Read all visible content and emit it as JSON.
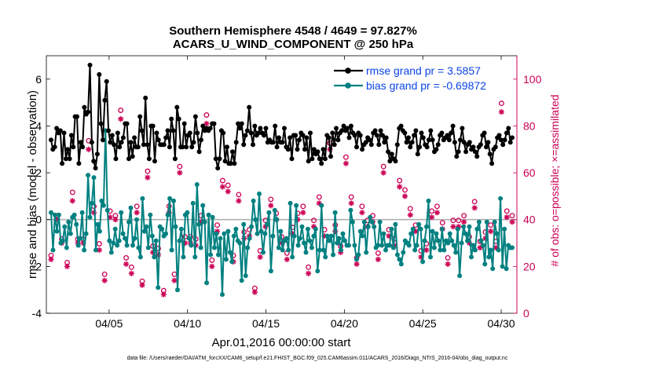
{
  "chart_data": {
    "type": "line",
    "title_line1": "Southern Hemisphere 4548 / 4649 = 97.827%",
    "title_line2": "ACARS_U_WIND_COMPONENT @ 250 hPa",
    "xlabel": "Apr.01,2016 00:00:00 start",
    "ylabel_left": "rmse and bias (model - observation)",
    "ylabel_right": "# of obs: o=possible; ×=assimilated",
    "footer": "data file: /Users/raeder/DAI/ATM_forcXX/CAM6_setup/f.e21.FHIST_BGC.f09_025.CAM6assim.011/ACARS_2016/Diags_NTrS_2016-04/obs_diag_output.nc",
    "x_ticks": [
      {
        "day": 5,
        "label": "04/05"
      },
      {
        "day": 10,
        "label": "04/10"
      },
      {
        "day": 15,
        "label": "04/15"
      },
      {
        "day": 20,
        "label": "04/20"
      },
      {
        "day": 25,
        "label": "04/25"
      },
      {
        "day": 30,
        "label": "04/30"
      }
    ],
    "xlim": [
      1.0,
      31.0
    ],
    "ylim_left": [
      -4,
      7
    ],
    "yticks_left": [
      "-4",
      "-2",
      "0",
      "2",
      "4",
      "6"
    ],
    "ylim_right": [
      0,
      110
    ],
    "yticks_right": [
      "0",
      "20",
      "40",
      "60",
      "80",
      "100"
    ],
    "colors": {
      "rmse": "#000000",
      "bias": "#008080",
      "obs": "#cc0055",
      "zero": "#b0b0b0",
      "legend_text": "#0a44e6"
    },
    "series": [
      {
        "name": "rmse",
        "legend": "rmse grand pr = 3.5857",
        "values": [
          3.4,
          3.0,
          3.1,
          3.9,
          3.7,
          3.8,
          2.4,
          3.7,
          2.6,
          3.0,
          2.6,
          3.6,
          3.1,
          4.4,
          4.4,
          2.4,
          3.3,
          3.1,
          4.8,
          4.5,
          4.6,
          6.6,
          3.3,
          2.5,
          2.2,
          2.8,
          6.2,
          4.1,
          3.4,
          5.1,
          5.9,
          3.8,
          3.3,
          3.6,
          3.2,
          2.6,
          3.7,
          3.1,
          3.3,
          3.5,
          4.1,
          4.1,
          2.6,
          3.3,
          2.7,
          3.5,
          3.1,
          3.1,
          4.4,
          3.8,
          3.2,
          5.2,
          3.2,
          2.6,
          4.0,
          4.0,
          2.5,
          3.7,
          3.4,
          3.2,
          3.2,
          3.2,
          3.5,
          3.8,
          3.1,
          4.3,
          3.8,
          2.6,
          4.8,
          4.3,
          3.1,
          3.1,
          4.1,
          3.1,
          3.6,
          3.7,
          3.1,
          3.3,
          4.4,
          3.7,
          2.9,
          3.4,
          4.0,
          3.8,
          3.9,
          3.8,
          3.9,
          4.1,
          4.1,
          2.6,
          2.2,
          2.6,
          3.8,
          3.7,
          2.5,
          3.1,
          2.4,
          2.4,
          2.9,
          2.4,
          3.3,
          4.1,
          3.9,
          4.1,
          3.2,
          3.6,
          3.8,
          4.8,
          3.7,
          3.2,
          4.0,
          3.6,
          3.7,
          3.9,
          3.7,
          3.6,
          3.9,
          3.3,
          3.4,
          3.3,
          3.3,
          4.0,
          3.1,
          3.5,
          3.3,
          3.3,
          3.9,
          3.1,
          3.0,
          3.5,
          2.6,
          3.6,
          3.6,
          3.0,
          3.4,
          3.7,
          3.6,
          3.0,
          3.5,
          2.5,
          3.7,
          2.6,
          3.0,
          2.8,
          2.9,
          2.6,
          2.4,
          3.0,
          2.6,
          3.6,
          3.5,
          2.7,
          3.7,
          3.2,
          3.9,
          3.4,
          3.7,
          3.8,
          4.0,
          3.8,
          3.9,
          3.5,
          4.0,
          3.7,
          3.6,
          3.1,
          3.7,
          3.6,
          3.0,
          3.2,
          3.3,
          3.5,
          3.4,
          3.2,
          3.7,
          3.8,
          3.6,
          3.2,
          3.8,
          3.6,
          3.3,
          3.5,
          2.9,
          2.5,
          2.8,
          2.6,
          2.5,
          3.2,
          3.9,
          4.0,
          3.8,
          3.7,
          3.3,
          3.5,
          3.1,
          3.3,
          3.6,
          3.8,
          2.8,
          3.1,
          3.7,
          3.5,
          3.2,
          3.1,
          3.4,
          3.8,
          3.4,
          2.9,
          3.0,
          3.2,
          3.6,
          3.7,
          3.4,
          3.5,
          3.6,
          3.4,
          3.7,
          4.0,
          3.3,
          2.7,
          2.9,
          3.4,
          3.9,
          3.3,
          2.9,
          3.2,
          3.3,
          3.0,
          3.1,
          2.9,
          2.7,
          3.1,
          3.2,
          3.6,
          3.7,
          3.1,
          3.3,
          2.8,
          2.4,
          3.0,
          3.1,
          3.5,
          3.6,
          3.4,
          3.2,
          3.4,
          3.7,
          3.9,
          3.3,
          3.5
        ],
        "visible_values_note": "daily points"
      },
      {
        "name": "bias",
        "legend": "bias grand pr = -0.69872",
        "values": [
          0.3,
          -1.3,
          0.2,
          -0.5,
          0.2,
          -1.0,
          -0.9,
          -0.3,
          -1.2,
          -0.1,
          -0.6,
          0.1,
          0.2,
          -0.2,
          -1.1,
          -0.8,
          0.3,
          -1.3,
          -0.6,
          1.9,
          0.1,
          0.7,
          1.8,
          -1.3,
          -0.2,
          -0.5,
          0.8,
          0.6,
          3.8,
          0.4,
          -0.9,
          -1.4,
          -1.0,
          -0.4,
          -1.1,
          -0.9,
          0.3,
          -0.6,
          -0.8,
          -1.1,
          -0.1,
          0.5,
          -1.1,
          -0.8,
          0.0,
          -1.2,
          -1.6,
          0.9,
          -0.5,
          -0.3,
          -1.2,
          0.2,
          -0.7,
          -1.6,
          -0.9,
          -2.9,
          -0.3,
          -0.4,
          -0.7,
          -0.6,
          0.2,
          0.9,
          -1.3,
          0.8,
          -0.3,
          -3.0,
          -0.9,
          -0.4,
          -1.6,
          0.2,
          0.3,
          -0.8,
          -1.1,
          0.7,
          -1.6,
          1.5,
          -0.2,
          -1.2,
          0.6,
          -0.1,
          -2.7,
          0.2,
          -1.5,
          0.1,
          -1.2,
          -0.6,
          -1.5,
          -0.8,
          -3.2,
          -0.6,
          -1.7,
          -0.5,
          -1.4,
          -1.8,
          -0.7,
          -0.4,
          -0.9,
          -1.0,
          -2.6,
          -0.2,
          -2.4,
          -1.2,
          -0.8,
          -0.3,
          0.8,
          0.0,
          -0.6,
          1.1,
          -0.5,
          -1.4,
          -0.6,
          -0.2,
          0.3,
          -2.2,
          -0.7,
          0.4,
          0.0,
          -1.2,
          -0.5,
          -1.3,
          -0.9,
          -0.8,
          -1.3,
          0.7,
          -1.6,
          -0.7,
          0.6,
          -1.1,
          -0.8,
          -0.3,
          -1.0,
          -1.4,
          -0.4,
          -0.9,
          -1.2,
          -0.7,
          -0.4,
          -2.2,
          -1.3,
          0.6,
          -1.3,
          -1.6,
          -0.7,
          -0.9,
          -0.7,
          -1.5,
          0.3,
          -1.0,
          -0.8,
          -1.3,
          -0.6,
          -0.9,
          -1.1,
          -1.1,
          0.4,
          -0.1,
          -1.1,
          -1.7,
          -1.5,
          -0.5,
          -0.7,
          -0.1,
          -1.4,
          -0.3,
          0.1,
          -0.1,
          -0.3,
          -1.2,
          -1.1,
          -0.1,
          -1.1,
          -0.6,
          -1.3,
          -1.1,
          -1.1,
          -0.4,
          -1.2,
          -0.2,
          -1.5,
          -1.7,
          -1.9,
          -1.4,
          -0.9,
          -1.0,
          -1.1,
          -0.6,
          -0.4,
          -1.3,
          -1.1,
          -0.2,
          -0.4,
          -1.8,
          -0.9,
          -0.3,
          0.8,
          -1.6,
          -0.5,
          -1.2,
          -0.6,
          -0.9,
          -1.3,
          -0.4,
          -1.3,
          -0.9,
          -1.0,
          -0.6,
          -0.9,
          -1.1,
          -1.4,
          -0.4,
          -2.4,
          -1.0,
          -0.3,
          -0.6,
          -0.9,
          -0.3,
          -1.6,
          -1.1,
          -1.3,
          -0.4,
          -0.1,
          -0.9,
          -1.1,
          -1.9,
          -0.1,
          -1.6,
          -1.3,
          -2.1,
          -0.1,
          -0.6,
          -1.3,
          0.9,
          -2.0,
          -0.4,
          -2.1,
          -1.1,
          -1.2,
          -1.2
        ],
        "visible_values_note": "daily points"
      },
      {
        "name": "obs_possible",
        "marker": "o",
        "values": [
          23,
          40,
          30,
          20,
          50,
          30,
          30,
          72,
          44,
          28,
          15,
          42,
          40,
          85,
          22,
          18,
          44,
          12,
          59,
          27,
          26,
          8,
          44,
          15,
          61,
          31,
          31,
          30,
          40,
          83,
          21,
          36,
          55,
          53,
          23,
          49,
          33,
          34,
          9,
          25,
          38,
          47,
          41,
          31,
          24,
          35,
          41,
          44,
          18,
          38,
          48,
          34,
          71,
          36,
          27,
          65,
          48,
          22,
          44,
          38,
          40,
          24,
          61,
          34,
          30,
          55,
          51,
          43,
          36,
          25,
          28,
          42,
          44,
          37,
          22,
          38,
          38,
          40,
          31,
          46,
          29,
          33,
          36,
          29,
          88,
          42,
          40
        ],
        "visible_values_note": "approximate"
      },
      {
        "name": "obs_assimilated",
        "marker": "*",
        "values": [
          23,
          40,
          30,
          20,
          48,
          30,
          30,
          70,
          43,
          27,
          14,
          41,
          40,
          83,
          21,
          17,
          43,
          12,
          58,
          26,
          25,
          8,
          43,
          14,
          60,
          30,
          30,
          29,
          39,
          81,
          20,
          35,
          54,
          52,
          22,
          48,
          32,
          33,
          9,
          24,
          37,
          46,
          40,
          30,
          23,
          34,
          40,
          43,
          17,
          37,
          47,
          33,
          70,
          35,
          26,
          64,
          47,
          21,
          43,
          37,
          39,
          23,
          60,
          33,
          29,
          54,
          50,
          42,
          35,
          24,
          27,
          41,
          43,
          36,
          21,
          37,
          37,
          39,
          30,
          45,
          28,
          32,
          35,
          28,
          86,
          41,
          39
        ],
        "visible_values_note": "approximate"
      }
    ]
  }
}
